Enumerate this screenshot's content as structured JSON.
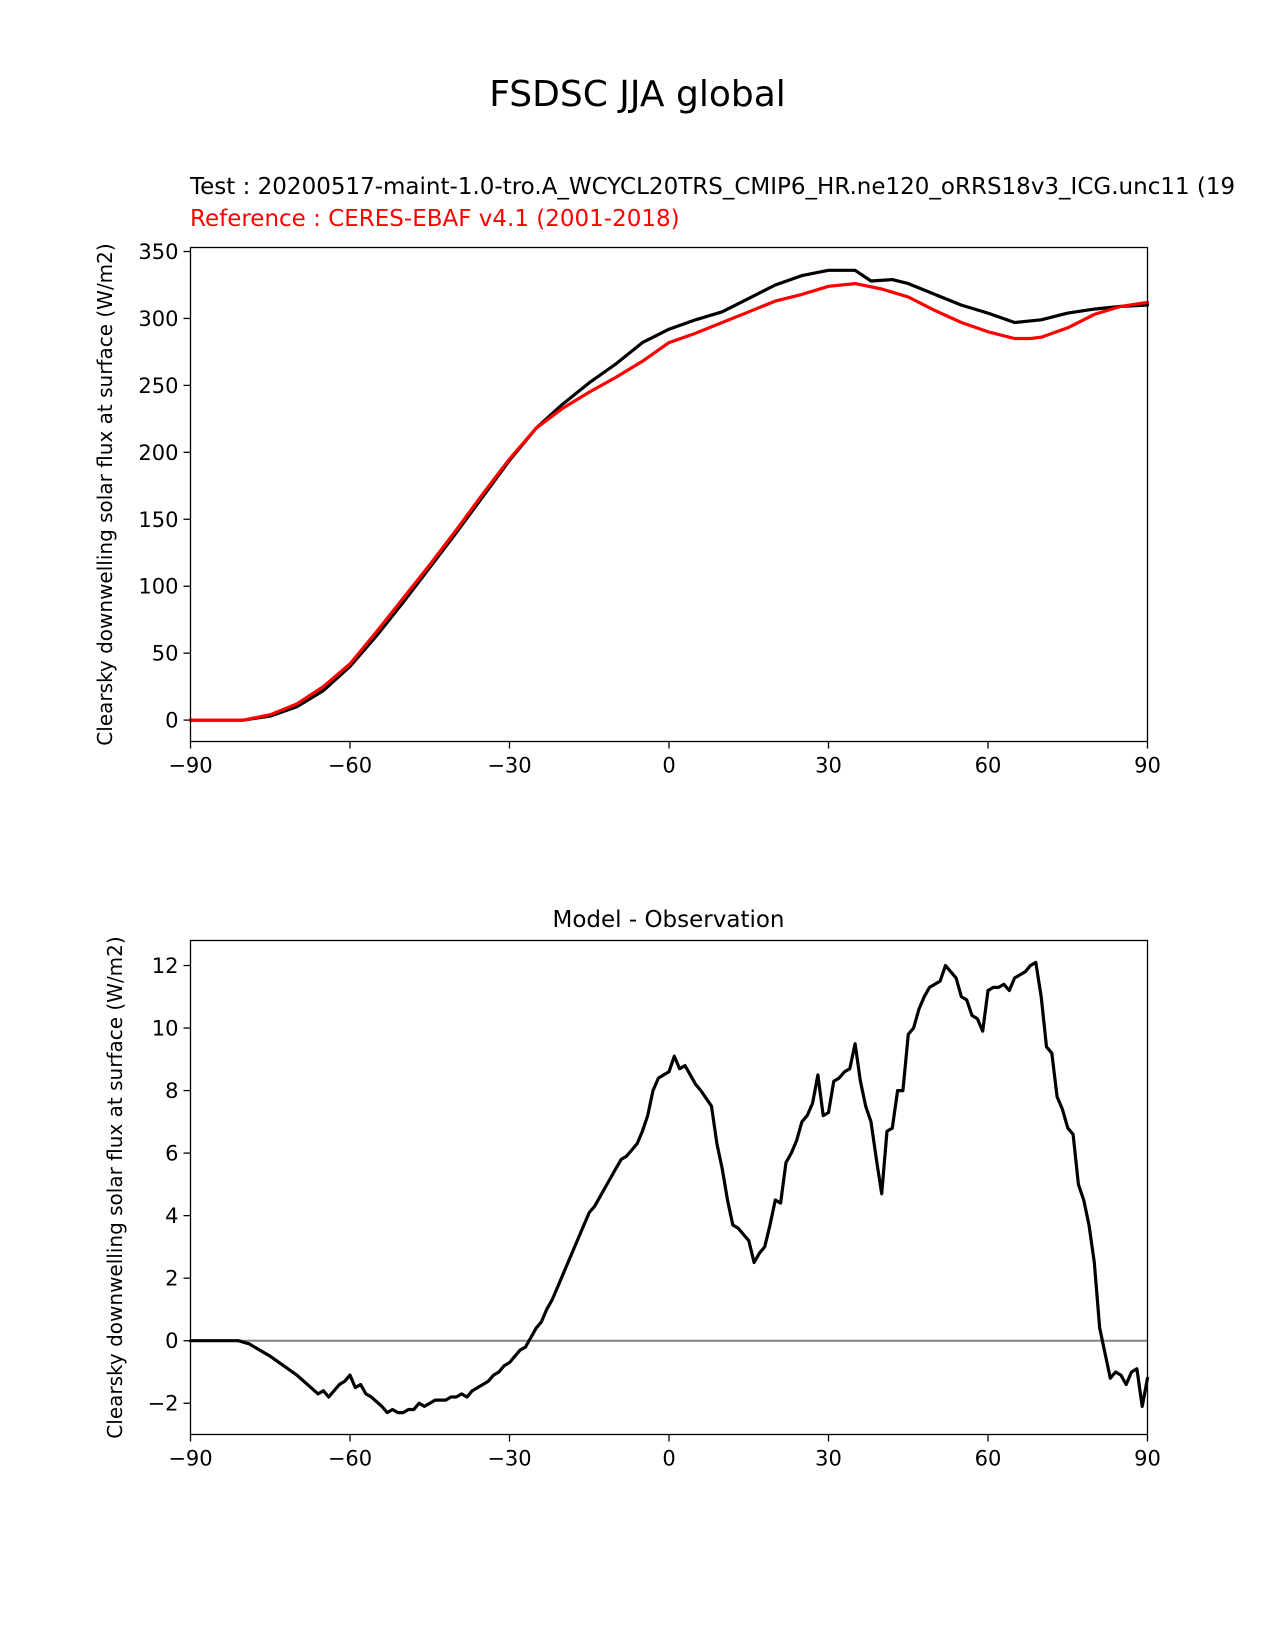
{
  "suptitle": "FSDSC JJA global",
  "panels": {
    "top": {
      "test_title": "Test : 20200517-maint-1.0-tro.A_WCYCL20TRS_CMIP6_HR.ne120_oRRS18v3_ICG.unc11 (19",
      "reference_title": "Reference : CERES-EBAF v4.1 (2001-2018)"
    },
    "bottom": {
      "title": "Model - Observation"
    }
  },
  "colors": {
    "test": "#000000",
    "reference": "#ff0000",
    "zero_line": "#808080"
  },
  "chart_data": [
    {
      "type": "line",
      "title": "",
      "xlabel": "",
      "ylabel": "Clearsky downwelling solar flux at surface (W/m2)",
      "xlim": [
        -90,
        90
      ],
      "ylim": [
        -16,
        353
      ],
      "xticks": [
        -90,
        -60,
        -30,
        0,
        30,
        60,
        90
      ],
      "xtick_labels": [
        "−90",
        "−60",
        "−30",
        "0",
        "30",
        "60",
        "90"
      ],
      "yticks": [
        0,
        50,
        100,
        150,
        200,
        250,
        300,
        350
      ],
      "ytick_labels": [
        "0",
        "50",
        "100",
        "150",
        "200",
        "250",
        "300",
        "350"
      ],
      "grid": false,
      "series": [
        {
          "role": "test",
          "color": "#000000",
          "x": [
            -90,
            -85,
            -80,
            -75,
            -70,
            -65,
            -60,
            -55,
            -50,
            -45,
            -40,
            -35,
            -30,
            -25,
            -20,
            -15,
            -10,
            -5,
            0,
            5,
            10,
            15,
            20,
            25,
            30,
            35,
            38,
            42,
            45,
            50,
            55,
            60,
            65,
            70,
            75,
            80,
            85,
            90
          ],
          "y": [
            0,
            0,
            0,
            3,
            10,
            22,
            40,
            63,
            88,
            114,
            140,
            167,
            194,
            218,
            236,
            252,
            266,
            282,
            292,
            299,
            305,
            315,
            325,
            332,
            336,
            336,
            328,
            329,
            326,
            318,
            310,
            304,
            297,
            299,
            304,
            307,
            309,
            310
          ]
        },
        {
          "role": "reference",
          "color": "#ff0000",
          "x": [
            -90,
            -85,
            -80,
            -75,
            -70,
            -65,
            -60,
            -55,
            -50,
            -45,
            -40,
            -35,
            -30,
            -25,
            -20,
            -15,
            -10,
            -5,
            0,
            5,
            10,
            15,
            20,
            25,
            30,
            35,
            40,
            45,
            50,
            55,
            60,
            65,
            68,
            70,
            75,
            80,
            85,
            90
          ],
          "y": [
            0,
            0,
            0,
            4,
            12,
            25,
            42,
            66,
            91,
            116,
            142,
            169,
            195,
            218,
            233,
            245,
            256,
            268,
            282,
            289,
            297,
            305,
            313,
            318,
            324,
            326,
            322,
            316,
            306,
            297,
            290,
            285,
            285,
            286,
            293,
            303,
            309,
            312
          ]
        }
      ]
    },
    {
      "type": "line",
      "title": "Model - Observation",
      "xlabel": "",
      "ylabel": "Clearsky downwelling solar flux at surface (W/m2)",
      "xlim": [
        -90,
        90
      ],
      "ylim": [
        -3.0,
        12.8
      ],
      "xticks": [
        -90,
        -60,
        -30,
        0,
        30,
        60,
        90
      ],
      "xtick_labels": [
        "−90",
        "−60",
        "−30",
        "0",
        "30",
        "60",
        "90"
      ],
      "yticks": [
        -2,
        0,
        2,
        4,
        6,
        8,
        10,
        12
      ],
      "ytick_labels": [
        "−2",
        "0",
        "2",
        "4",
        "6",
        "8",
        "10",
        "12"
      ],
      "zero_line": 0,
      "grid": false,
      "series": [
        {
          "role": "difference",
          "color": "#000000",
          "x": [
            -90,
            -85,
            -81,
            -79,
            -75,
            -70,
            -66,
            -65,
            -64,
            -62,
            -61,
            -60,
            -59,
            -58,
            -57,
            -56,
            -54,
            -53,
            -52,
            -51,
            -50,
            -49,
            -48,
            -47,
            -46,
            -45,
            -44,
            -43,
            -42,
            -41,
            -40,
            -39,
            -38,
            -37,
            -36,
            -35,
            -34,
            -33,
            -32,
            -31,
            -30,
            -29,
            -28,
            -27,
            -26,
            -25,
            -24,
            -23,
            -22,
            -21,
            -20,
            -19,
            -18,
            -17,
            -16,
            -15,
            -14,
            -13,
            -12,
            -11,
            -10,
            -9,
            -8,
            -7,
            -6,
            -5,
            -4,
            -3,
            -2,
            -1,
            0,
            1,
            2,
            3,
            4,
            5,
            6,
            8,
            9,
            10,
            11,
            12,
            13,
            14,
            15,
            16,
            17,
            18,
            19,
            20,
            21,
            22,
            23,
            24,
            25,
            26,
            27,
            28,
            29,
            30,
            31,
            32,
            33,
            34,
            35,
            36,
            37,
            38,
            39,
            40,
            41,
            42,
            43,
            44,
            45,
            46,
            47,
            48,
            49,
            50,
            51,
            52,
            53,
            54,
            55,
            56,
            57,
            58,
            59,
            60,
            61,
            62,
            63,
            64,
            65,
            66,
            67,
            68,
            69,
            70,
            71,
            72,
            73,
            74,
            75,
            76,
            77,
            78,
            79,
            80,
            81,
            82,
            83,
            84,
            85,
            86,
            87,
            88,
            89,
            90
          ],
          "y": [
            0,
            0,
            0,
            -0.1,
            -0.5,
            -1.1,
            -1.7,
            -1.6,
            -1.8,
            -1.4,
            -1.3,
            -1.1,
            -1.5,
            -1.4,
            -1.7,
            -1.8,
            -2.1,
            -2.3,
            -2.2,
            -2.3,
            -2.3,
            -2.2,
            -2.2,
            -2.0,
            -2.1,
            -2.0,
            -1.9,
            -1.9,
            -1.9,
            -1.8,
            -1.8,
            -1.7,
            -1.8,
            -1.6,
            -1.5,
            -1.4,
            -1.3,
            -1.1,
            -1.0,
            -0.8,
            -0.7,
            -0.5,
            -0.3,
            -0.2,
            0.1,
            0.4,
            0.6,
            1.0,
            1.3,
            1.7,
            2.1,
            2.5,
            2.9,
            3.3,
            3.7,
            4.1,
            4.3,
            4.6,
            4.9,
            5.2,
            5.5,
            5.8,
            5.9,
            6.1,
            6.3,
            6.7,
            7.2,
            8.0,
            8.4,
            8.5,
            8.6,
            9.1,
            8.7,
            8.8,
            8.5,
            8.2,
            8.0,
            7.5,
            6.3,
            5.5,
            4.5,
            3.7,
            3.6,
            3.4,
            3.2,
            2.5,
            2.8,
            3.0,
            3.7,
            4.5,
            4.4,
            5.7,
            6.0,
            6.4,
            7.0,
            7.2,
            7.6,
            8.5,
            7.2,
            7.3,
            8.3,
            8.4,
            8.6,
            8.7,
            9.5,
            8.3,
            7.5,
            7.0,
            5.8,
            4.7,
            6.7,
            6.8,
            8.0,
            8.0,
            9.8,
            10.0,
            10.6,
            11.0,
            11.3,
            11.4,
            11.5,
            12.0,
            11.8,
            11.6,
            11.0,
            10.9,
            10.4,
            10.3,
            9.9,
            11.2,
            11.3,
            11.3,
            11.4,
            11.2,
            11.6,
            11.7,
            11.8,
            12.0,
            12.1,
            11.0,
            9.4,
            9.2,
            7.8,
            7.4,
            6.8,
            6.6,
            5.0,
            4.5,
            3.7,
            2.5,
            0.4,
            -0.4,
            -1.2,
            -1.0,
            -1.1,
            -1.4,
            -1.0,
            -0.9,
            -2.1,
            -1.2
          ]
        }
      ]
    }
  ]
}
